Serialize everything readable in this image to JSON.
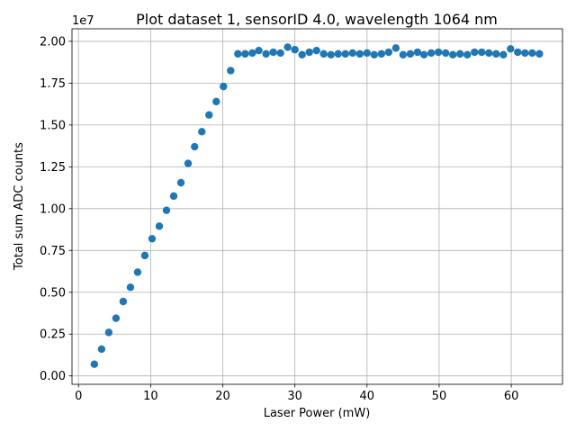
{
  "chart_data": {
    "type": "scatter",
    "title": "Plot dataset 1, sensorID 4.0, wavelength 1064 nm",
    "xlabel": "Laser Power (mW)",
    "ylabel": "Total sum ADC counts",
    "y_offset_label": "1e7",
    "xlim": [
      -0.9,
      67.1
    ],
    "ylim": [
      -500000,
      20750000
    ],
    "x_ticks": [
      0,
      10,
      20,
      30,
      40,
      50,
      60
    ],
    "x_tick_labels": [
      "0",
      "10",
      "20",
      "30",
      "40",
      "50",
      "60"
    ],
    "y_ticks": [
      0,
      2500000,
      5000000,
      7500000,
      10000000,
      12500000,
      15000000,
      17500000,
      20000000
    ],
    "y_tick_labels": [
      "0.00",
      "0.25",
      "0.50",
      "0.75",
      "1.00",
      "1.25",
      "1.50",
      "1.75",
      "2.00"
    ],
    "grid": true,
    "marker_color": "#1f77b4",
    "series": [
      {
        "x": [
          2.2,
          3.2,
          4.2,
          5.2,
          6.2,
          7.2,
          8.2,
          9.2,
          10.2,
          11.2,
          12.2,
          13.2,
          14.2,
          15.2,
          16.1,
          17.1,
          18.1,
          19.1,
          20.1,
          21.1,
          22.1,
          23.1,
          24.1,
          25.0,
          26.0,
          27.0,
          28.0,
          29.0,
          30.0,
          31.0,
          32.0,
          33.0,
          34.0,
          35.0,
          36.0,
          37.0,
          38.0,
          39.0,
          40.0,
          41.0,
          42.0,
          43.0,
          44.0,
          45.0,
          46.0,
          47.0,
          47.9,
          48.9,
          49.9,
          50.9,
          51.9,
          52.9,
          53.9,
          54.9,
          55.9,
          56.9,
          57.9,
          58.9,
          59.9,
          60.9,
          61.9,
          62.9,
          63.9
        ],
        "y": [
          700000,
          1600000,
          2600000,
          3450000,
          4450000,
          5300000,
          6200000,
          7200000,
          8200000,
          8950000,
          9900000,
          10750000,
          11550000,
          12700000,
          13700000,
          14600000,
          15600000,
          16400000,
          17300000,
          18250000,
          19250000,
          19250000,
          19300000,
          19450000,
          19250000,
          19350000,
          19300000,
          19650000,
          19500000,
          19200000,
          19350000,
          19450000,
          19250000,
          19200000,
          19250000,
          19250000,
          19300000,
          19250000,
          19300000,
          19200000,
          19250000,
          19350000,
          19600000,
          19200000,
          19250000,
          19350000,
          19200000,
          19300000,
          19350000,
          19300000,
          19200000,
          19250000,
          19200000,
          19350000,
          19350000,
          19300000,
          19250000,
          19200000,
          19550000,
          19350000,
          19300000,
          19300000,
          19250000
        ]
      }
    ]
  }
}
